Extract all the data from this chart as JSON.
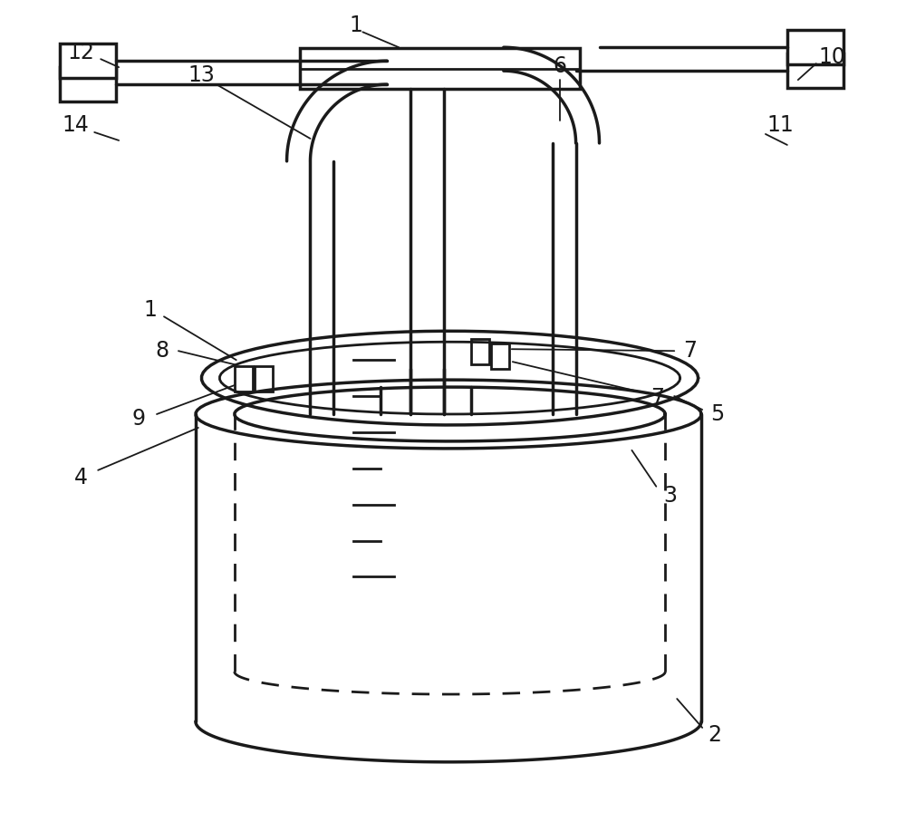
{
  "bg": "#ffffff",
  "lc": "#1a1a1a",
  "lw": 2.0,
  "lw2": 2.5,
  "fw": 10.0,
  "fh": 9.07
}
